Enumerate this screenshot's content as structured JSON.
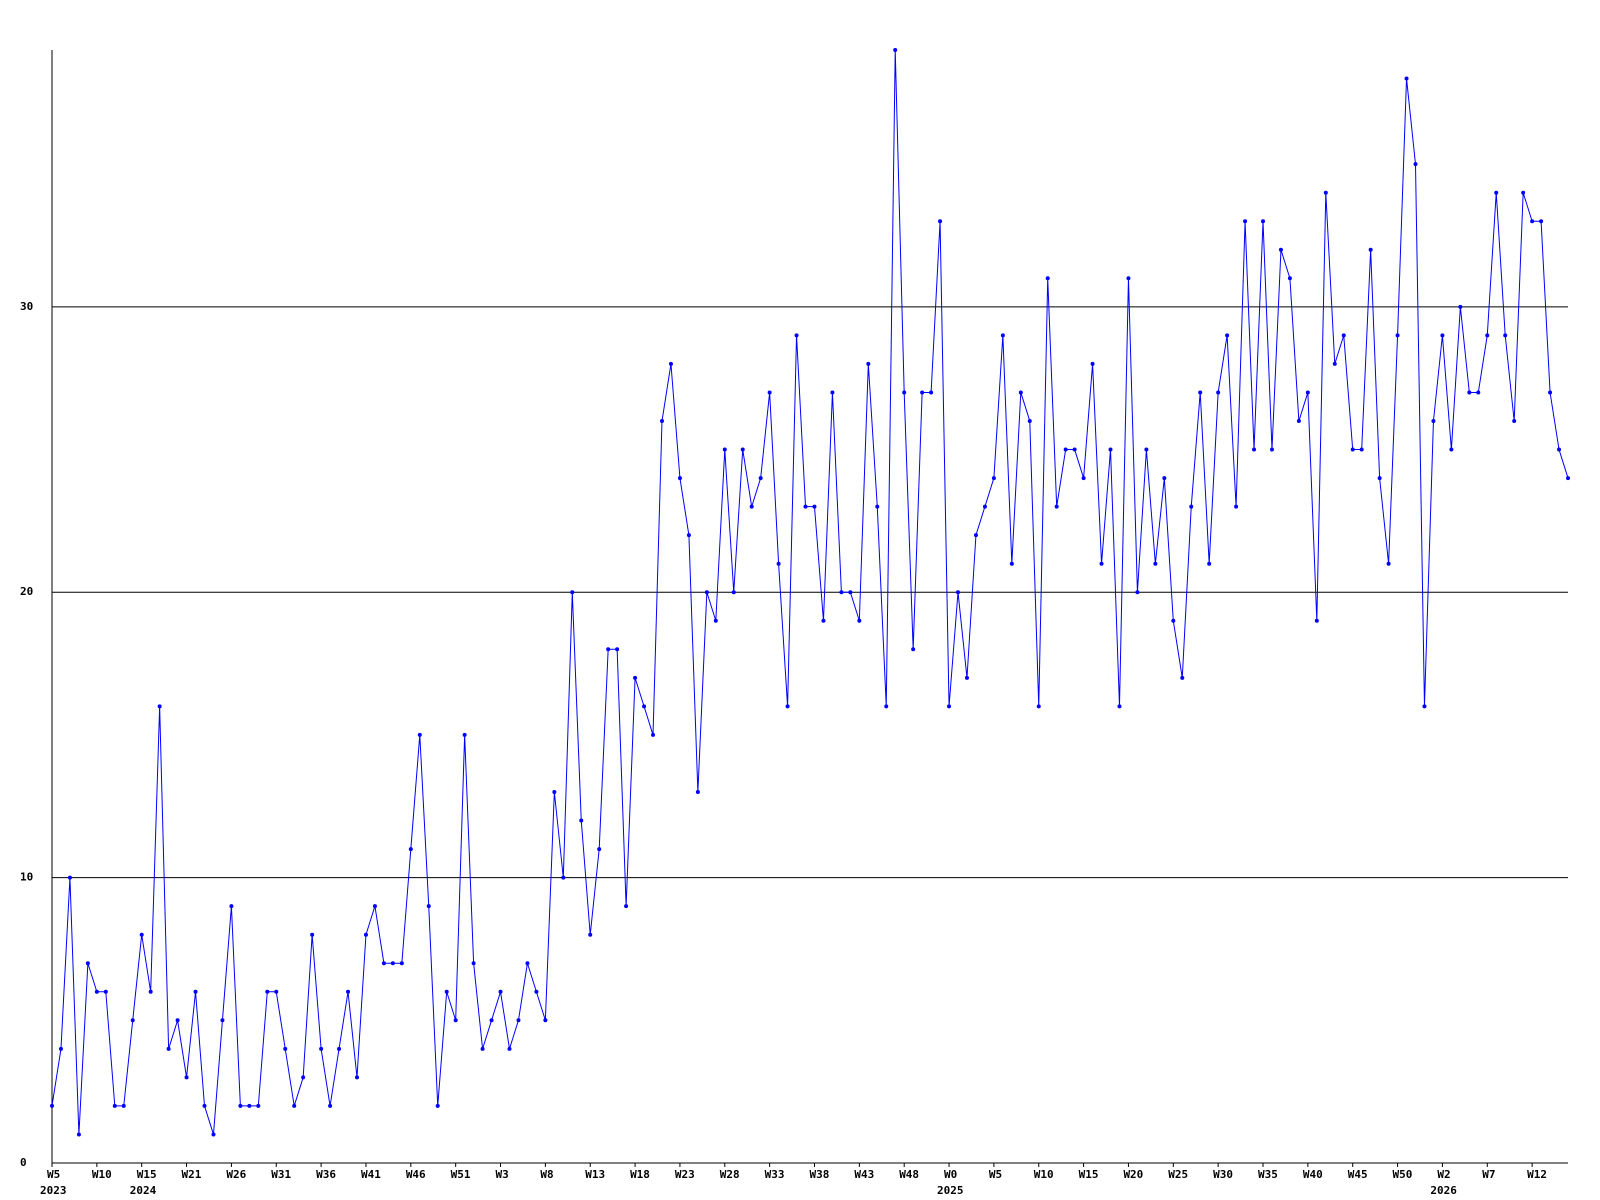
{
  "chart_data": {
    "type": "line",
    "categories": [
      "W5",
      null,
      null,
      null,
      null,
      "W10",
      null,
      null,
      null,
      null,
      "W15",
      null,
      null,
      null,
      null,
      "W21",
      null,
      null,
      null,
      null,
      "W26",
      null,
      null,
      null,
      null,
      "W31",
      null,
      null,
      null,
      null,
      "W36",
      null,
      null,
      null,
      null,
      "W41",
      null,
      null,
      null,
      null,
      "W46",
      null,
      null,
      null,
      null,
      "W51",
      null,
      null,
      null,
      null,
      "W3",
      null,
      null,
      null,
      null,
      "W8",
      null,
      null,
      null,
      null,
      "W13",
      null,
      null,
      null,
      null,
      "W18",
      null,
      null,
      null,
      null,
      "W23",
      null,
      null,
      null,
      null,
      "W28",
      null,
      null,
      null,
      null,
      "W33",
      null,
      null,
      null,
      null,
      "W38",
      null,
      null,
      null,
      null,
      "W43",
      null,
      null,
      null,
      null,
      "W48",
      null,
      null,
      null,
      null,
      "W0",
      null,
      null,
      null,
      null,
      "W5",
      null,
      null,
      null,
      null,
      "W10",
      null,
      null,
      null,
      null,
      "W15",
      null,
      null,
      null,
      null,
      "W20",
      null,
      null,
      null,
      null,
      "W25",
      null,
      null,
      null,
      null,
      "W30",
      null,
      null,
      null,
      null,
      "W35",
      null,
      null,
      null,
      null,
      "W40",
      null,
      null,
      null,
      null,
      "W45",
      null,
      null,
      null,
      null,
      "W50",
      null,
      null,
      null,
      null,
      "W2",
      null,
      null,
      null,
      null,
      "W7",
      null,
      null,
      null,
      null,
      "W12",
      null,
      null,
      null,
      null
    ],
    "category_years": [
      "2023",
      null,
      null,
      null,
      null,
      null,
      null,
      null,
      null,
      null,
      "2024",
      null,
      null,
      null,
      null,
      null,
      null,
      null,
      null,
      null,
      null,
      null,
      null,
      null,
      null,
      null,
      null,
      null,
      null,
      null,
      null,
      null,
      null,
      null,
      null,
      null,
      null,
      null,
      null,
      null,
      null,
      null,
      null,
      null,
      null,
      null,
      null,
      null,
      null,
      null,
      null,
      null,
      null,
      null,
      null,
      null,
      null,
      null,
      null,
      null,
      null,
      null,
      null,
      null,
      null,
      null,
      null,
      null,
      null,
      null,
      null,
      null,
      null,
      null,
      null,
      null,
      null,
      null,
      null,
      null,
      null,
      null,
      null,
      null,
      null,
      null,
      null,
      null,
      null,
      null,
      null,
      null,
      null,
      null,
      null,
      null,
      null,
      null,
      null,
      null,
      "2025",
      null,
      null,
      null,
      null,
      null,
      null,
      null,
      null,
      null,
      null,
      null,
      null,
      null,
      null,
      null,
      null,
      null,
      null,
      null,
      null,
      null,
      null,
      null,
      null,
      null,
      null,
      null,
      null,
      null,
      null,
      null,
      null,
      null,
      null,
      null,
      null,
      null,
      null,
      null,
      null,
      null,
      null,
      null,
      null,
      null,
      null,
      null,
      null,
      null,
      null,
      null,
      null,
      null,
      null,
      "2026",
      null,
      null,
      null,
      null,
      null,
      null,
      null,
      null,
      null,
      null,
      null,
      null,
      null,
      null
    ],
    "series": [
      {
        "color": "#0000ff",
        "values": [
          2,
          4,
          10,
          1,
          7,
          6,
          6,
          2,
          2,
          5,
          8,
          6,
          16,
          4,
          5,
          3,
          6,
          2,
          1,
          5,
          9,
          2,
          2,
          2,
          6,
          6,
          4,
          2,
          3,
          8,
          4,
          2,
          4,
          6,
          3,
          8,
          9,
          7,
          7,
          7,
          11,
          15,
          9,
          2,
          6,
          5,
          15,
          7,
          4,
          5,
          6,
          4,
          5,
          7,
          6,
          5,
          13,
          10,
          20,
          12,
          8,
          11,
          18,
          18,
          9,
          17,
          16,
          15,
          26,
          28,
          24,
          22,
          13,
          20,
          19,
          25,
          20,
          25,
          23,
          24,
          27,
          21,
          16,
          29,
          23,
          23,
          19,
          27,
          20,
          20,
          19,
          28,
          23,
          16,
          39,
          27,
          18,
          27,
          27,
          33,
          16,
          20,
          17,
          22,
          23,
          24,
          29,
          21,
          27,
          26,
          16,
          31,
          23,
          25,
          25,
          24,
          28,
          21,
          25,
          16,
          31,
          20,
          25,
          21,
          24,
          19,
          17,
          23,
          27,
          21,
          27,
          29,
          23,
          33,
          25,
          33,
          25,
          32,
          31,
          26,
          27,
          19,
          34,
          28,
          29,
          25,
          25,
          32,
          24,
          21,
          29,
          38,
          35,
          16,
          26,
          29,
          25,
          30,
          27,
          27,
          29,
          34,
          29,
          26,
          34,
          33,
          33,
          27,
          25,
          24
        ]
      }
    ],
    "ylim": [
      0,
      39
    ],
    "yticks": [
      0,
      10,
      20,
      30
    ],
    "grid": true
  }
}
